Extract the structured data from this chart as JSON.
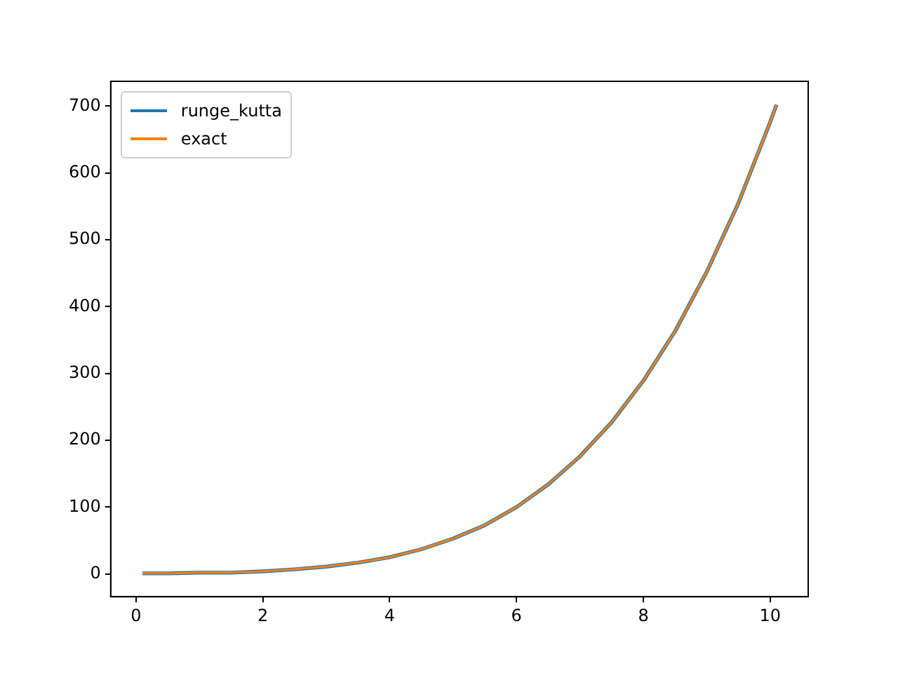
{
  "chart_data": {
    "type": "line",
    "x": [
      0.1,
      0.5,
      1,
      1.5,
      2,
      2.5,
      3,
      3.5,
      4,
      4.5,
      5,
      5.5,
      6,
      6.5,
      7,
      7.5,
      8,
      8.5,
      9,
      9.5,
      10,
      10.1
    ],
    "series": [
      {
        "name": "runge_kutta",
        "color": "#1f77b4",
        "values": [
          1,
          1,
          2,
          2,
          4,
          7,
          11,
          17,
          25,
          37,
          53,
          73,
          100,
          134,
          176,
          227,
          289,
          363,
          452,
          555,
          676,
          702
        ]
      },
      {
        "name": "exact",
        "color": "#ff7f0e",
        "values": [
          1,
          1,
          2,
          2,
          4,
          7,
          11,
          17,
          25,
          37,
          53,
          73,
          100,
          134,
          176,
          227,
          289,
          363,
          452,
          555,
          676,
          702
        ]
      }
    ],
    "xlim": [
      -0.4,
      10.6
    ],
    "xticks": [
      0,
      2,
      4,
      6,
      8,
      10
    ],
    "ylim": [
      -34,
      737
    ],
    "yticks": [
      0,
      100,
      200,
      300,
      400,
      500,
      600,
      700
    ],
    "grid": false,
    "legend": "top left",
    "marker": "none",
    "line_style": "solid"
  }
}
